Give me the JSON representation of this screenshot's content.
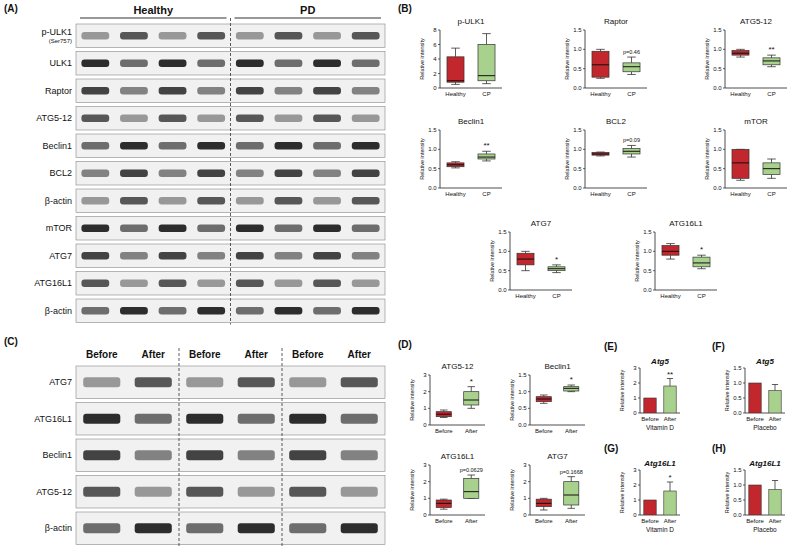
{
  "panel_labels": [
    "(A)",
    "(B)",
    "(C)",
    "(D)",
    "(E)",
    "(F)",
    "(G)",
    "(H)"
  ],
  "blots": [
    {
      "groups": [
        "Healthy",
        "PD"
      ],
      "rows": [
        {
          "label": "p-ULK1",
          "sublabel": "(Ser757)"
        },
        {
          "label": "ULK1"
        },
        {
          "label": "Raptor"
        },
        {
          "label": "ATG5-12"
        },
        {
          "label": "Beclin1"
        },
        {
          "label": "BCL2"
        },
        {
          "label": "β-actin"
        },
        {
          "label": "mTOR"
        },
        {
          "label": "ATG7"
        },
        {
          "label": "ATG16L1"
        },
        {
          "label": "β-actin"
        }
      ]
    },
    {
      "lanes": [
        "Before",
        "After",
        "Before",
        "After",
        "Before",
        "After"
      ],
      "rows": [
        {
          "label": "ATG7"
        },
        {
          "label": "ATG16L1"
        },
        {
          "label": "Beclin1"
        },
        {
          "label": "ATG5-12"
        },
        {
          "label": "β-actin"
        }
      ]
    }
  ],
  "chart_data": [
    {
      "type": "box",
      "title": "p-ULK1",
      "y_label": "Relative intensity",
      "categories": [
        "Healthy",
        "CP"
      ],
      "colors": [
        "#c1272d",
        "#a9d18e"
      ],
      "ylim": [
        0,
        8
      ],
      "yticks": [
        0,
        2,
        4,
        6,
        8
      ],
      "boxes": [
        {
          "min": 0.5,
          "q1": 0.8,
          "median": 1,
          "q3": 4.3,
          "max": 5.5
        },
        {
          "min": 0.6,
          "q1": 1,
          "median": 1.7,
          "q3": 6,
          "max": 7.5
        }
      ]
    },
    {
      "type": "box",
      "title": "Raptor",
      "y_label": "Relative intensity",
      "categories": [
        "Healthy",
        "CP"
      ],
      "colors": [
        "#c1272d",
        "#a9d18e"
      ],
      "ylim": [
        0,
        1.5
      ],
      "yticks": [
        {
          "value": 0,
          "label": "0.0"
        },
        0.5,
        {
          "value": 1,
          "label": "1.0"
        },
        1.5
      ],
      "boxes": [
        {
          "min": 0.25,
          "q1": 0.28,
          "median": 0.6,
          "q3": 0.95,
          "max": 1
        },
        {
          "min": 0.35,
          "q1": 0.42,
          "median": 0.55,
          "q3": 0.65,
          "max": 0.8
        }
      ],
      "annotation": "p=0.46"
    },
    {
      "type": "box",
      "title": "ATG5-12",
      "y_label": "Relative intensity",
      "categories": [
        "Healthy",
        "CP"
      ],
      "colors": [
        "#c1272d",
        "#a9d18e"
      ],
      "ylim": [
        0,
        1.5
      ],
      "yticks": [
        {
          "value": 0,
          "label": "0.0"
        },
        0.5,
        {
          "value": 1,
          "label": "1.0"
        },
        1.5
      ],
      "boxes": [
        {
          "min": 0.8,
          "q1": 0.85,
          "median": 0.9,
          "q3": 0.97,
          "max": 1
        },
        {
          "min": 0.55,
          "q1": 0.6,
          "median": 0.7,
          "q3": 0.78,
          "max": 0.85
        }
      ],
      "annotation": "**"
    },
    {
      "type": "box",
      "title": "Beclin1",
      "y_label": "Relative intensity",
      "categories": [
        "Healthy",
        "CP"
      ],
      "colors": [
        "#c1272d",
        "#a9d18e"
      ],
      "ylim": [
        0,
        1.5
      ],
      "yticks": [
        {
          "value": 0,
          "label": "0.0"
        },
        0.5,
        {
          "value": 1,
          "label": "1.0"
        },
        1.5
      ],
      "boxes": [
        {
          "min": 0.52,
          "q1": 0.55,
          "median": 0.6,
          "q3": 0.65,
          "max": 0.68
        },
        {
          "min": 0.7,
          "q1": 0.75,
          "median": 0.8,
          "q3": 0.88,
          "max": 0.95
        }
      ],
      "annotation": "**"
    },
    {
      "type": "box",
      "title": "BCL2",
      "y_label": "Relative intensity",
      "categories": [
        "Healthy",
        "CP"
      ],
      "colors": [
        "#c1272d",
        "#a9d18e"
      ],
      "ylim": [
        0,
        1.5
      ],
      "yticks": [
        {
          "value": 0,
          "label": "0.0"
        },
        0.5,
        {
          "value": 1,
          "label": "1.0"
        },
        1.5
      ],
      "boxes": [
        {
          "min": 0.83,
          "q1": 0.85,
          "median": 0.88,
          "q3": 0.92,
          "max": 0.93
        },
        {
          "min": 0.8,
          "q1": 0.88,
          "median": 0.95,
          "q3": 1.02,
          "max": 1.1
        }
      ],
      "annotation": "p=0.09"
    },
    {
      "type": "box",
      "title": "mTOR",
      "y_label": "Relative intensity",
      "categories": [
        "Healthy",
        "CP"
      ],
      "colors": [
        "#c1272d",
        "#a9d18e"
      ],
      "ylim": [
        0,
        1.5
      ],
      "yticks": [
        {
          "value": 0,
          "label": "0.0"
        },
        0.5,
        {
          "value": 1,
          "label": "1.0"
        },
        1.5
      ],
      "boxes": [
        {
          "min": 0.2,
          "q1": 0.25,
          "median": 0.65,
          "q3": 1,
          "max": 1
        },
        {
          "min": 0.25,
          "q1": 0.35,
          "median": 0.5,
          "q3": 0.65,
          "max": 0.75
        }
      ]
    },
    {
      "type": "box",
      "title": "ATG7",
      "y_label": "Relative intensity",
      "categories": [
        "Healthy",
        "CP"
      ],
      "colors": [
        "#c1272d",
        "#a9d18e"
      ],
      "ylim": [
        0,
        1.5
      ],
      "yticks": [
        {
          "value": 0,
          "label": "0.0"
        },
        0.5,
        {
          "value": 1,
          "label": "1.0"
        },
        1.5
      ],
      "boxes": [
        {
          "min": 0.5,
          "q1": 0.65,
          "median": 0.8,
          "q3": 0.95,
          "max": 1
        },
        {
          "min": 0.45,
          "q1": 0.5,
          "median": 0.55,
          "q3": 0.6,
          "max": 0.65
        }
      ],
      "annotation": "*"
    },
    {
      "type": "box",
      "title": "ATG16L1",
      "y_label": "Relative intensity",
      "categories": [
        "Healthy",
        "CP"
      ],
      "colors": [
        "#c1272d",
        "#a9d18e"
      ],
      "ylim": [
        0,
        1.5
      ],
      "yticks": [
        {
          "value": 0,
          "label": "0.0"
        },
        0.5,
        {
          "value": 1,
          "label": "1.0"
        },
        1.5
      ],
      "boxes": [
        {
          "min": 0.8,
          "q1": 0.9,
          "median": 1,
          "q3": 1.15,
          "max": 1.2
        },
        {
          "min": 0.55,
          "q1": 0.6,
          "median": 0.7,
          "q3": 0.85,
          "max": 0.9
        }
      ],
      "annotation": "*"
    },
    {
      "type": "box",
      "title": "ATG5-12",
      "y_label": "Relative intensity",
      "categories": [
        "Before",
        "After"
      ],
      "colors": [
        "#c1272d",
        "#a9d18e"
      ],
      "ylim": [
        0,
        3
      ],
      "yticks": [
        0,
        1,
        2,
        3
      ],
      "boxes": [
        {
          "min": 0.45,
          "q1": 0.5,
          "median": 0.65,
          "q3": 0.8,
          "max": 0.9
        },
        {
          "min": 1,
          "q1": 1.2,
          "median": 1.5,
          "q3": 2,
          "max": 2.3
        }
      ],
      "annotation": "*"
    },
    {
      "type": "box",
      "title": "Beclin1",
      "y_label": "Relative intensity",
      "categories": [
        "Before",
        "After"
      ],
      "colors": [
        "#c1272d",
        "#a9d18e"
      ],
      "ylim": [
        0,
        1.5
      ],
      "yticks": [
        {
          "value": 0,
          "label": "0.0"
        },
        0.5,
        {
          "value": 1,
          "label": "1.0"
        },
        1.5
      ],
      "boxes": [
        {
          "min": 0.65,
          "q1": 0.7,
          "median": 0.78,
          "q3": 0.85,
          "max": 0.9
        },
        {
          "min": 1,
          "q1": 1.02,
          "median": 1.1,
          "q3": 1.15,
          "max": 1.2
        }
      ],
      "annotation": "*"
    },
    {
      "type": "box",
      "title": "ATG16L1",
      "y_label": "Relative intensity",
      "categories": [
        "Before",
        "After"
      ],
      "colors": [
        "#c1272d",
        "#a9d18e"
      ],
      "ylim": [
        0,
        3
      ],
      "yticks": [
        0,
        1,
        2,
        3
      ],
      "boxes": [
        {
          "min": 0.35,
          "q1": 0.45,
          "median": 0.7,
          "q3": 0.9,
          "max": 0.95
        },
        {
          "min": 1,
          "q1": 1,
          "median": 1.4,
          "q3": 2.2,
          "max": 2.4
        }
      ],
      "annotation": "p=0.0629"
    },
    {
      "type": "box",
      "title": "ATG7",
      "y_label": "Relative intensity",
      "categories": [
        "Before",
        "After"
      ],
      "colors": [
        "#c1272d",
        "#a9d18e"
      ],
      "ylim": [
        0,
        3
      ],
      "yticks": [
        0,
        1,
        2,
        3
      ],
      "boxes": [
        {
          "min": 0.3,
          "q1": 0.5,
          "median": 0.7,
          "q3": 0.95,
          "max": 1
        },
        {
          "min": 0.4,
          "q1": 0.6,
          "median": 1.2,
          "q3": 2,
          "max": 2.3
        }
      ],
      "annotation": "p=0.1668"
    },
    {
      "type": "bar",
      "title": "Atg5",
      "x_label": "Vitamin D",
      "y_label": "Relative intensity",
      "categories": [
        "Before",
        "After"
      ],
      "colors": [
        "#c1272d",
        "#a9d18e"
      ],
      "ylim": [
        0,
        3
      ],
      "yticks": [
        0,
        1,
        2,
        3
      ],
      "values": [
        1,
        1.8
      ],
      "errors": [
        null,
        0.5
      ],
      "annotation": "**"
    },
    {
      "type": "bar",
      "title": "Atg5",
      "x_label": "Placebo",
      "y_label": "Relative intensity",
      "categories": [
        "Before",
        "After"
      ],
      "colors": [
        "#c1272d",
        "#a9d18e"
      ],
      "ylim": [
        0,
        1.5
      ],
      "yticks": [
        {
          "value": 0,
          "label": "0.0"
        },
        0.5,
        {
          "value": 1,
          "label": "1.0"
        },
        1.5
      ],
      "values": [
        1,
        0.75
      ],
      "errors": [
        null,
        0.2
      ]
    },
    {
      "type": "bar",
      "title": "Atg16L1",
      "x_label": "Vitamin D",
      "y_label": "Relative intensity",
      "categories": [
        "Before",
        "After"
      ],
      "colors": [
        "#c1272d",
        "#a9d18e"
      ],
      "ylim": [
        0,
        3
      ],
      "yticks": [
        0,
        1,
        2,
        3
      ],
      "values": [
        1,
        1.6
      ],
      "errors": [
        null,
        0.6
      ],
      "annotation": "*"
    },
    {
      "type": "bar",
      "title": "Atg16L1",
      "x_label": "Placebo",
      "y_label": "Relative intensity",
      "categories": [
        "Before",
        "After"
      ],
      "colors": [
        "#c1272d",
        "#a9d18e"
      ],
      "ylim": [
        0,
        1.5
      ],
      "yticks": [
        {
          "value": 0,
          "label": "0.0"
        },
        0.5,
        {
          "value": 1,
          "label": "1.0"
        },
        1.5
      ],
      "values": [
        1,
        0.85
      ],
      "errors": [
        null,
        0.3
      ]
    }
  ]
}
